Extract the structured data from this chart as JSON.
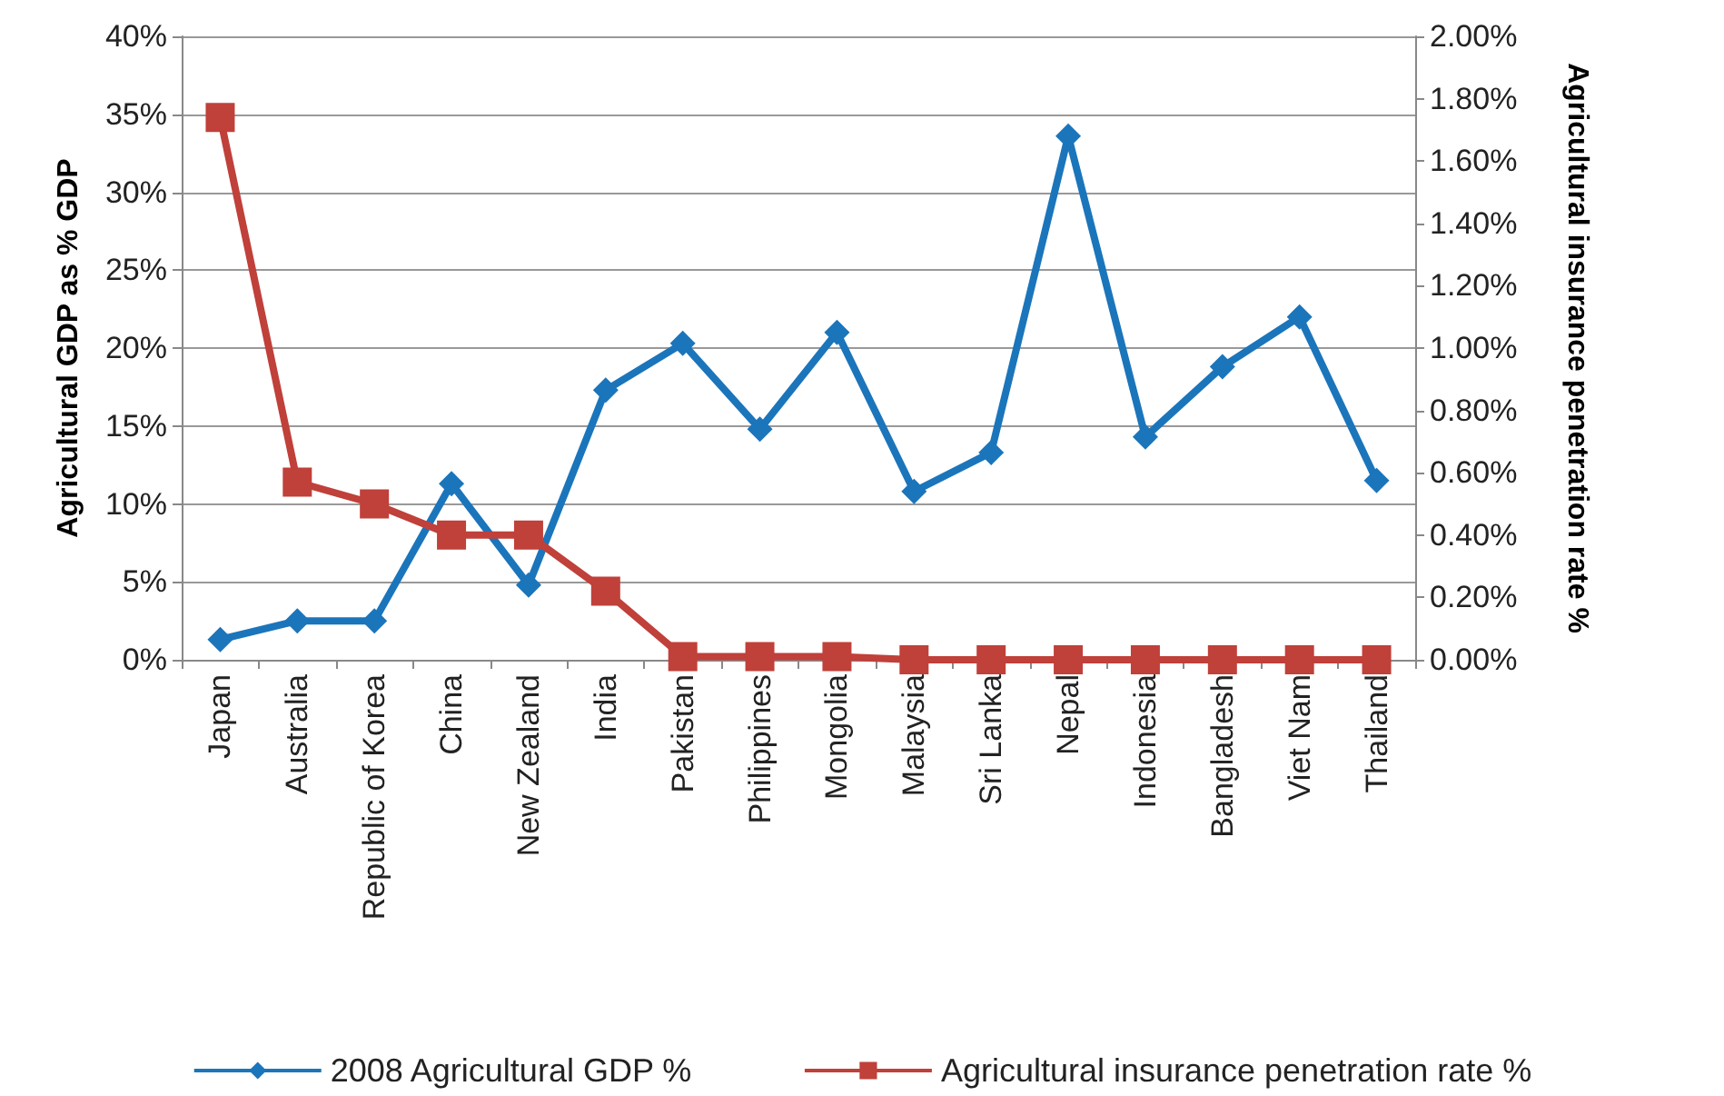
{
  "chart_data": {
    "type": "line",
    "ylabel": "Agricultural GDP as % GDP",
    "y2label": "Agricultural insurance penetration rate %",
    "categories": [
      "Japan",
      "Australia",
      "Republic of Korea",
      "China",
      "New Zealand",
      "India",
      "Pakistan",
      "Philippines",
      "Mongolia",
      "Malaysia",
      "Sri Lanka",
      "Nepal",
      "Indonesia",
      "Bangladesh",
      "Viet Nam",
      "Thailand"
    ],
    "series": [
      {
        "name": "2008 Agricultural GDP %",
        "color": "#1b75bb",
        "marker": "diamond",
        "values": [
          1.3,
          2.5,
          2.5,
          11.3,
          4.8,
          17.3,
          20.3,
          14.8,
          21,
          10.8,
          13.3,
          33.6,
          14.3,
          18.8,
          22,
          11.5
        ]
      },
      {
        "name": "Agricultural insurance penetration rate %",
        "color": "#c0403a",
        "marker": "square",
        "axis": "y2",
        "values": [
          1.74,
          0.57,
          0.5,
          0.4,
          0.4,
          0.22,
          0.01,
          0.01,
          0.01,
          0,
          0,
          0,
          0,
          0,
          0,
          0
        ]
      }
    ],
    "ylim": [
      0,
      40
    ],
    "yticks": [
      {
        "value": 0,
        "label": "0%"
      },
      {
        "value": 5,
        "label": "5%"
      },
      {
        "value": 10,
        "label": "10%"
      },
      {
        "value": 15,
        "label": "15%"
      },
      {
        "value": 20,
        "label": "20%"
      },
      {
        "value": 25,
        "label": "25%"
      },
      {
        "value": 30,
        "label": "30%"
      },
      {
        "value": 35,
        "label": "35%"
      },
      {
        "value": 40,
        "label": "40%"
      }
    ],
    "y2lim": [
      0,
      2
    ],
    "y2ticks": [
      {
        "value": 0,
        "label": "0.00%"
      },
      {
        "value": 0.2,
        "label": "0.20%"
      },
      {
        "value": 0.4,
        "label": "0.40%"
      },
      {
        "value": 0.6,
        "label": "0.60%"
      },
      {
        "value": 0.8,
        "label": "0.80%"
      },
      {
        "value": 1,
        "label": "1.00%"
      },
      {
        "value": 1.2,
        "label": "1.20%"
      },
      {
        "value": 1.4,
        "label": "1.40%"
      },
      {
        "value": 1.6,
        "label": "1.60%"
      },
      {
        "value": 1.8,
        "label": "1.80%"
      },
      {
        "value": 2,
        "label": "2.00%"
      }
    ],
    "grid": "y",
    "legend": "bottom",
    "line_style": "solid"
  }
}
